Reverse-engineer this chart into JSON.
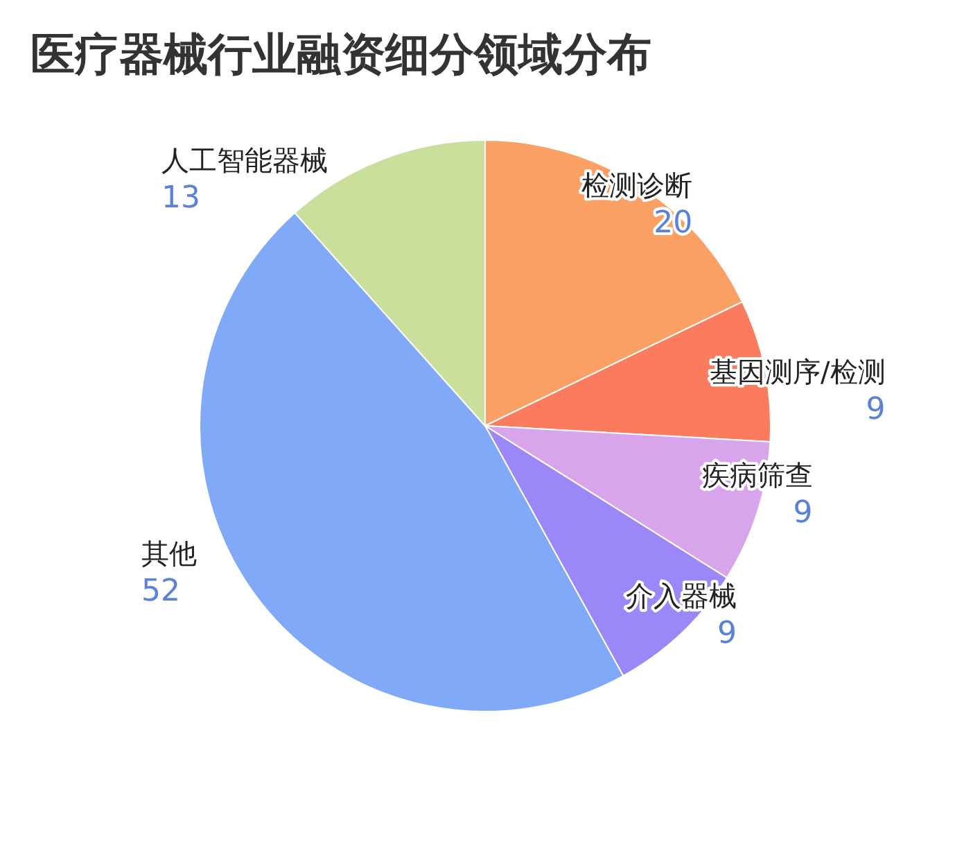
{
  "chart_data": {
    "type": "pie",
    "title": "医疗器械行业融资细分领域分布",
    "categories": [
      "检测诊断",
      "基因测序/检测",
      "疾病筛查",
      "介入器械",
      "其他",
      "人工智能器械"
    ],
    "values": [
      20,
      9,
      9,
      9,
      52,
      13
    ],
    "colors": [
      "#fba065",
      "#fb7b5f",
      "#d8a5ec",
      "#9b87f8",
      "#80aaf8",
      "#c9df9b"
    ],
    "data_labels": true
  }
}
